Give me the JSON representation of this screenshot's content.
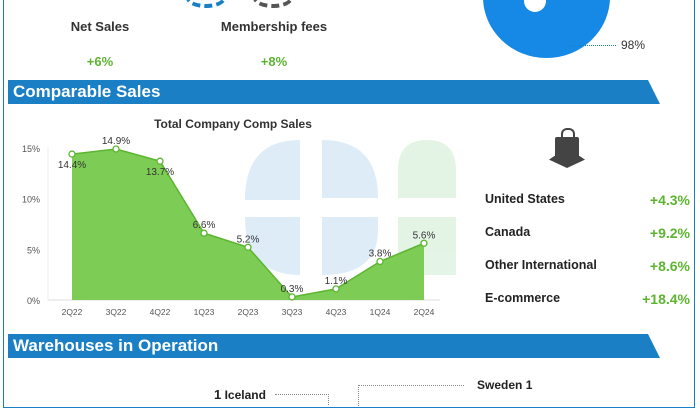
{
  "kpis": [
    {
      "label": "Net Sales",
      "value": "+6%"
    },
    {
      "label": "Membership fees",
      "value": "+8%"
    }
  ],
  "pie_label": "98%",
  "sections": {
    "comparable": "Comparable Sales",
    "warehouses": "Warehouses in Operation"
  },
  "regions": [
    {
      "name": "United States",
      "value": "+4.3%"
    },
    {
      "name": "Canada",
      "value": "+9.2%"
    },
    {
      "name": "Other International",
      "value": "+8.6%"
    },
    {
      "name": "E-commerce",
      "value": "+18.4%"
    }
  ],
  "warehouses": [
    {
      "count": "1",
      "country": "Iceland"
    },
    {
      "count": "1",
      "country": "Sweden"
    }
  ],
  "colors": {
    "accent": "#1a7fc4",
    "green": "#5cb531",
    "fill": "#7dcc55"
  },
  "chart_data": {
    "type": "area",
    "title": "Total Company Comp Sales",
    "categories": [
      "2Q22",
      "3Q22",
      "4Q22",
      "1Q23",
      "2Q23",
      "3Q23",
      "4Q23",
      "1Q24",
      "2Q24"
    ],
    "values": [
      14.4,
      14.9,
      13.7,
      6.6,
      5.2,
      0.3,
      1.1,
      3.8,
      5.6
    ],
    "data_labels": [
      "14.4%",
      "14.9%",
      "13.7%",
      "6.6%",
      "5.2%",
      "0.3%",
      "1.1%",
      "3.8%",
      "5.6%"
    ],
    "yticks": [
      "0%",
      "5%",
      "10%",
      "15%"
    ],
    "ylim": [
      0,
      15
    ],
    "xlabel": "",
    "ylabel": ""
  }
}
